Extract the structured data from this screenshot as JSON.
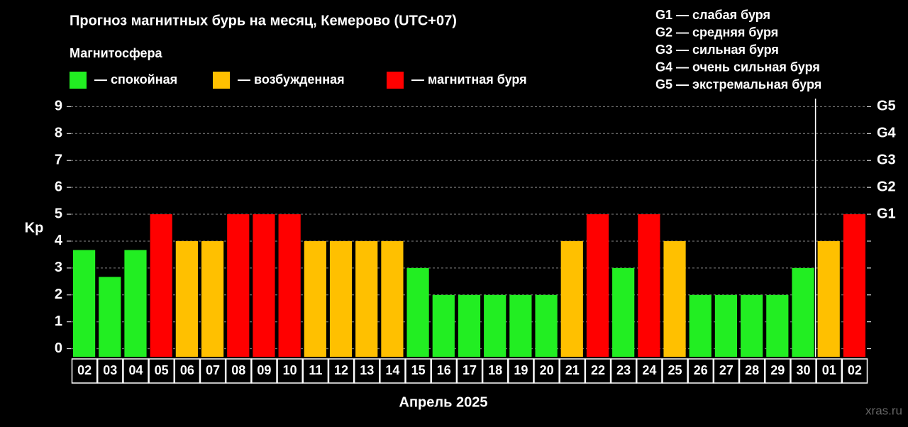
{
  "chart_data": {
    "type": "bar",
    "title": "Прогноз магнитных бурь на месяц, Кемерово (UTC+07)",
    "legend_title": "Магнитосфера",
    "legend": [
      {
        "label": "— спокойная",
        "color": "#22ee22"
      },
      {
        "label": "— возбужденная",
        "color": "#ffc000"
      },
      {
        "label": "— магнитная буря",
        "color": "#ff0000"
      }
    ],
    "notes": [
      "G1 — слабая буря",
      "G2 — средняя буря",
      "G3 — сильная буря",
      "G4 — очень сильная буря",
      "G5 — экстремальная буря"
    ],
    "y_label": "Kp",
    "x_label": "Апрель 2025",
    "watermark": "xras.ru",
    "categories": [
      "02",
      "03",
      "04",
      "05",
      "06",
      "07",
      "08",
      "09",
      "10",
      "11",
      "12",
      "13",
      "14",
      "15",
      "16",
      "17",
      "18",
      "19",
      "20",
      "21",
      "22",
      "23",
      "24",
      "25",
      "26",
      "27",
      "28",
      "29",
      "30",
      "01",
      "02"
    ],
    "values": [
      3.67,
      2.67,
      3.67,
      5,
      4,
      4,
      5,
      5,
      5,
      4,
      4,
      4,
      4,
      3,
      2,
      2,
      2,
      2,
      2,
      4,
      5,
      3,
      5,
      4,
      2,
      2,
      2,
      2,
      3,
      4,
      5
    ],
    "bar_colors": [
      "#22ee22",
      "#22ee22",
      "#22ee22",
      "#ff0000",
      "#ffc000",
      "#ffc000",
      "#ff0000",
      "#ff0000",
      "#ff0000",
      "#ffc000",
      "#ffc000",
      "#ffc000",
      "#ffc000",
      "#22ee22",
      "#22ee22",
      "#22ee22",
      "#22ee22",
      "#22ee22",
      "#22ee22",
      "#ffc000",
      "#ff0000",
      "#22ee22",
      "#ff0000",
      "#ffc000",
      "#22ee22",
      "#22ee22",
      "#22ee22",
      "#22ee22",
      "#22ee22",
      "#ffc000",
      "#ff0000"
    ],
    "ylim": [
      -0.3,
      9.3
    ],
    "yticks": [
      0,
      1,
      2,
      3,
      4,
      5,
      6,
      7,
      8,
      9
    ],
    "y2lim": [
      -0.3,
      9.3
    ],
    "y2ticks": [
      {
        "value": 5,
        "label": "G1"
      },
      {
        "value": 6,
        "label": "G2"
      },
      {
        "value": 7,
        "label": "G3"
      },
      {
        "value": 8,
        "label": "G4"
      },
      {
        "value": 9,
        "label": "G5"
      }
    ],
    "grid": true
  }
}
